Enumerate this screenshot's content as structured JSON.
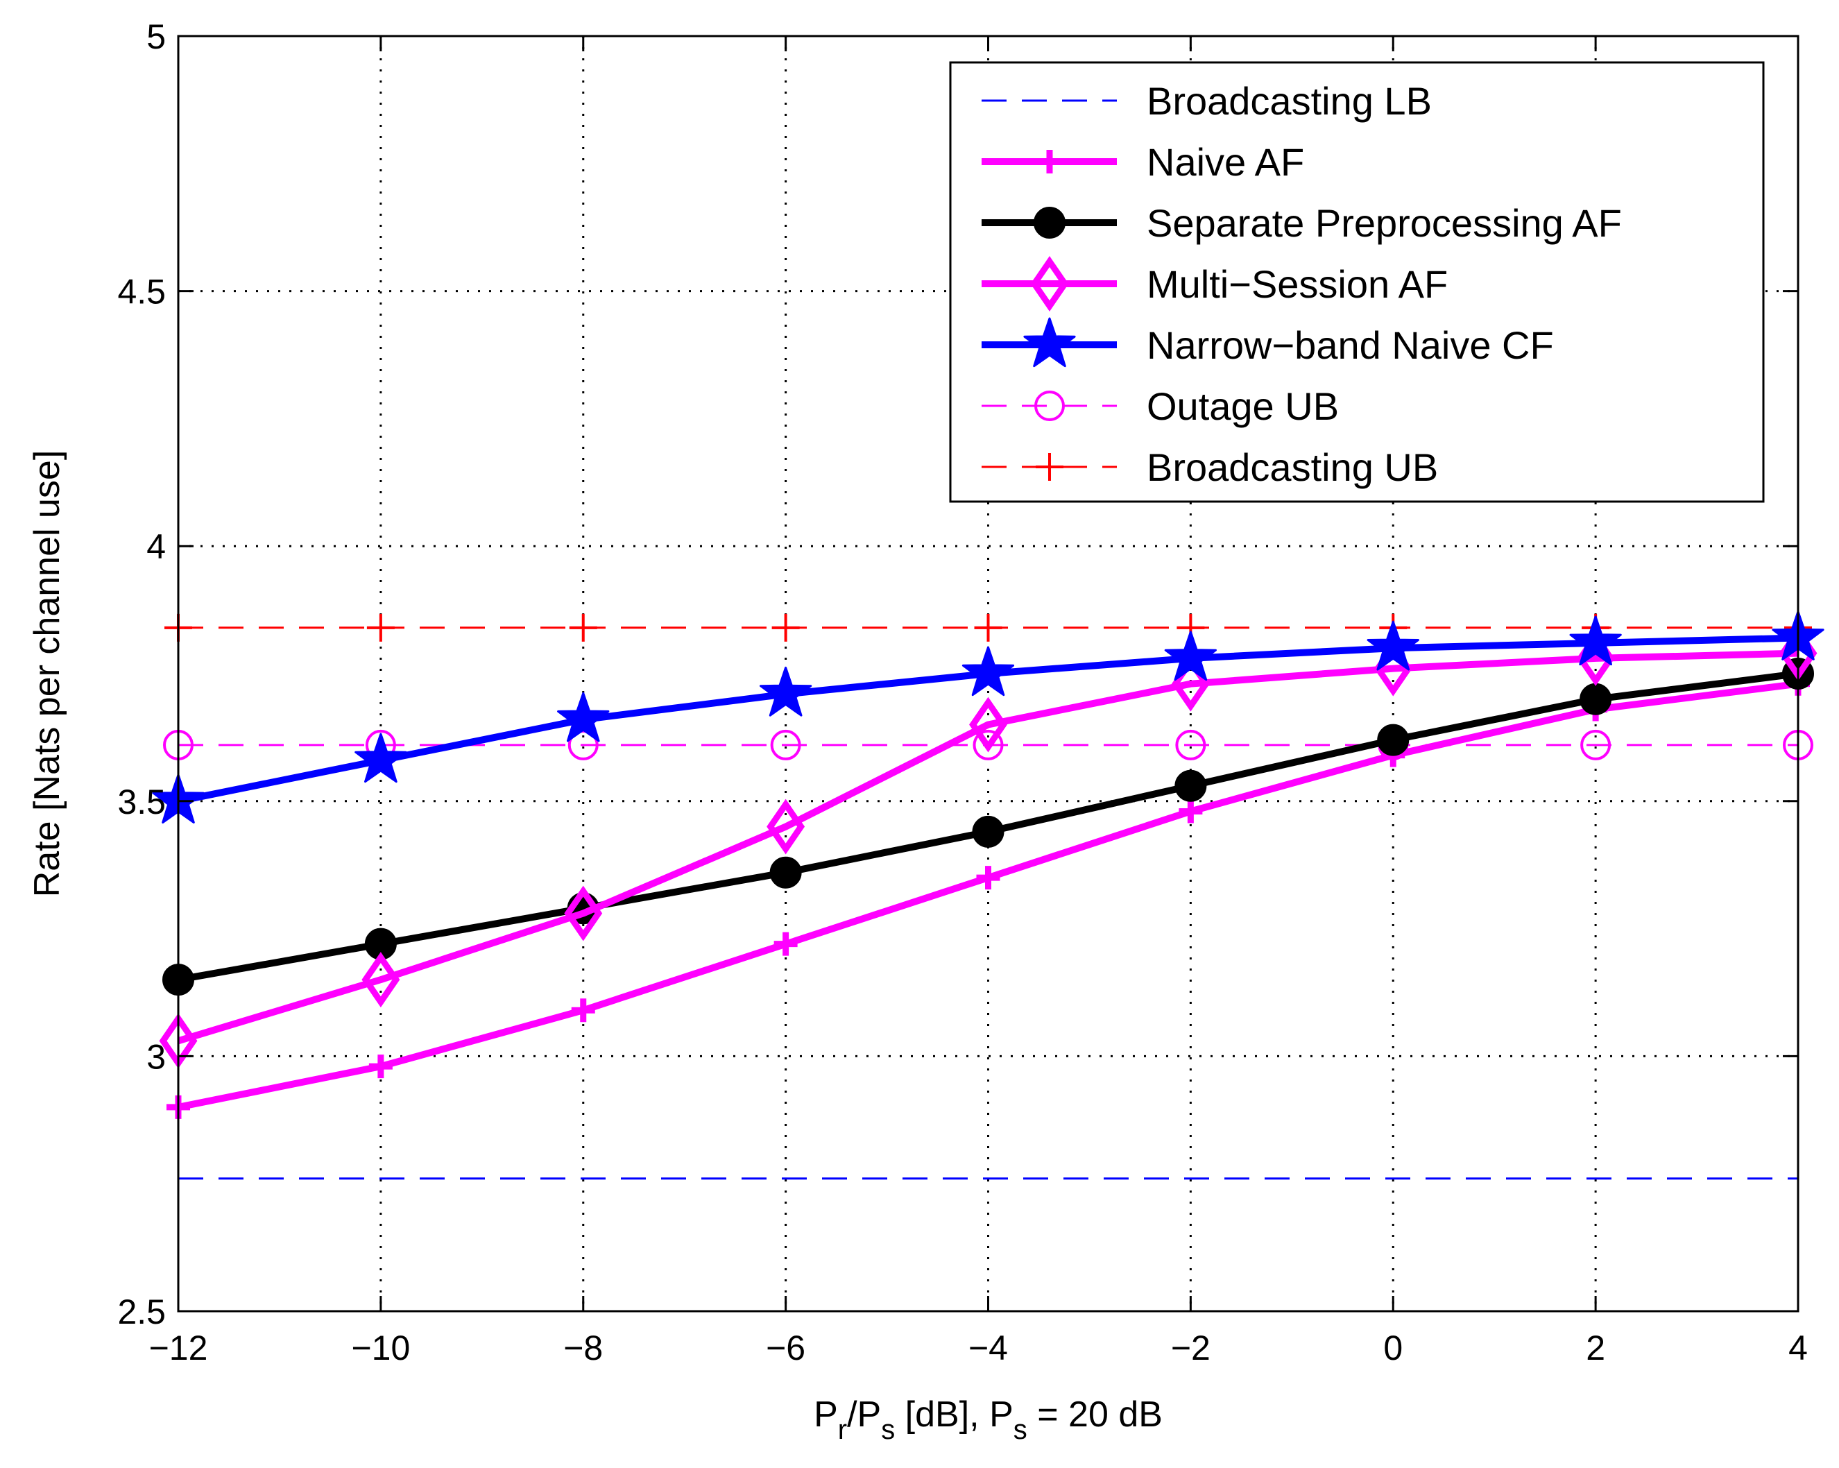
{
  "chart_data": {
    "type": "line",
    "title": "",
    "xlabel": {
      "parts": [
        {
          "text": "P",
          "sub": false
        },
        {
          "text": "r",
          "sub": true
        },
        {
          "text": "/P",
          "sub": false
        },
        {
          "text": "s",
          "sub": true
        },
        {
          "text": " [dB], P",
          "sub": false
        },
        {
          "text": "s",
          "sub": true
        },
        {
          "text": " = 20 dB",
          "sub": false
        }
      ]
    },
    "ylabel": "Rate [Nats per channel use]",
    "xlim": [
      -12,
      4
    ],
    "ylim": [
      2.5,
      5
    ],
    "xticks": [
      -12,
      -10,
      -8,
      -6,
      -4,
      -2,
      0,
      2,
      4
    ],
    "xtick_labels": [
      "−12",
      "−10",
      "−8",
      "−6",
      "−4",
      "−2",
      "0",
      "2",
      "4"
    ],
    "yticks": [
      2.5,
      3,
      3.5,
      4,
      4.5,
      5
    ],
    "ytick_labels": [
      "2.5",
      "3",
      "3.5",
      "4",
      "4.5",
      "5"
    ],
    "grid": true,
    "legend_position": "top-right",
    "x": [
      -12,
      -10,
      -8,
      -6,
      -4,
      -2,
      0,
      2,
      4
    ],
    "series": [
      {
        "name": "Broadcasting LB",
        "color": "#0000ff",
        "style": "dashed",
        "marker": "none",
        "weight": "thin",
        "values": [
          2.76,
          2.76,
          2.76,
          2.76,
          2.76,
          2.76,
          2.76,
          2.76,
          2.76
        ]
      },
      {
        "name": "Naive AF",
        "color": "#ff00ff",
        "style": "solid",
        "marker": "plus",
        "weight": "thick",
        "values": [
          2.9,
          2.98,
          3.09,
          3.22,
          3.35,
          3.48,
          3.59,
          3.68,
          3.73
        ]
      },
      {
        "name": "Separate Preprocessing AF",
        "color": "#000000",
        "style": "solid",
        "marker": "circle-filled",
        "weight": "thick",
        "values": [
          3.15,
          3.22,
          3.29,
          3.36,
          3.44,
          3.53,
          3.62,
          3.7,
          3.75
        ]
      },
      {
        "name": "Multi−Session AF",
        "color": "#ff00ff",
        "style": "solid",
        "marker": "diamond",
        "weight": "thick",
        "values": [
          3.03,
          3.15,
          3.28,
          3.45,
          3.65,
          3.73,
          3.76,
          3.78,
          3.79
        ]
      },
      {
        "name": "Narrow−band Naive CF",
        "color": "#0000ff",
        "style": "solid",
        "marker": "star",
        "weight": "thick",
        "values": [
          3.5,
          3.58,
          3.66,
          3.71,
          3.75,
          3.78,
          3.8,
          3.81,
          3.82
        ]
      },
      {
        "name": "Outage UB",
        "color": "#ff00ff",
        "style": "dashed",
        "marker": "circle-open",
        "weight": "thin",
        "values": [
          3.61,
          3.61,
          3.61,
          3.61,
          3.61,
          3.61,
          3.61,
          3.61,
          3.61
        ]
      },
      {
        "name": "Broadcasting UB",
        "color": "#ff0000",
        "style": "dashed",
        "marker": "plus",
        "weight": "thin",
        "values": [
          3.84,
          3.84,
          3.84,
          3.84,
          3.84,
          3.84,
          3.84,
          3.84,
          3.84
        ]
      }
    ]
  }
}
